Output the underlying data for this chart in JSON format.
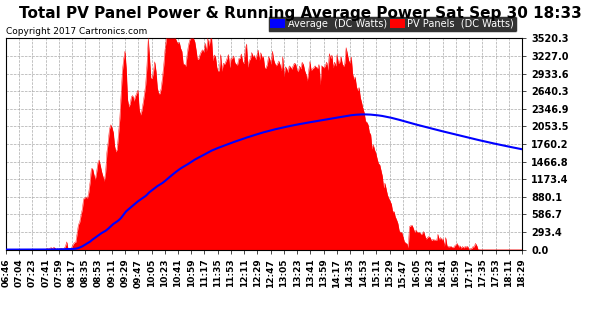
{
  "title": "Total PV Panel Power & Running Average Power Sat Sep 30 18:33",
  "copyright": "Copyright 2017 Cartronics.com",
  "legend_avg": "Average  (DC Watts)",
  "legend_pv": "PV Panels  (DC Watts)",
  "ymax": 3520.3,
  "ymin": 0.0,
  "yticks": [
    0.0,
    293.4,
    586.7,
    880.1,
    1173.4,
    1466.8,
    1760.2,
    2053.5,
    2346.9,
    2640.3,
    2933.6,
    3227.0,
    3520.3
  ],
  "bg_color": "#ffffff",
  "plot_bg_color": "#ffffff",
  "grid_color": "#aaaaaa",
  "pv_color": "#ff0000",
  "avg_color": "#0000ff",
  "title_fontsize": 11,
  "tick_fontsize": 7,
  "num_points": 400
}
